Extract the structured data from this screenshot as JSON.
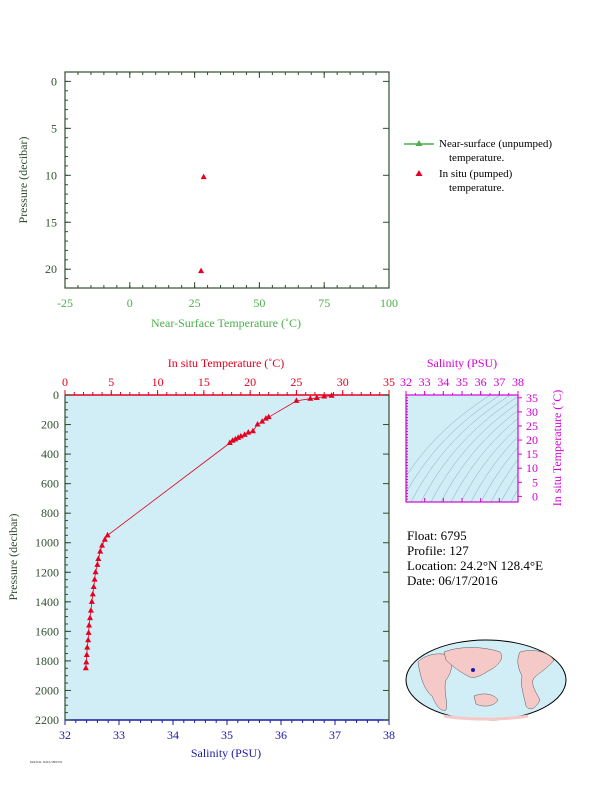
{
  "colors": {
    "green": "#4cae4c",
    "red": "#e6001f",
    "blue": "#1a1aa8",
    "magenta": "#d400d4",
    "darkgreen": "#2f4f2f",
    "panel_bg": "#d1eef7",
    "land": "#f6c9c9",
    "ocean_map": "#d1eef7"
  },
  "legend": {
    "items": [
      {
        "label": "Near-surface (unpumped)",
        "label2": "temperature.",
        "marker": "triangle-line",
        "color": "#4cae4c"
      },
      {
        "label": "In situ (pumped)",
        "label2": "temperature.",
        "marker": "triangle",
        "color": "#e6001f"
      }
    ]
  },
  "info": {
    "float": "Float:  6795",
    "profile": "Profile:  127",
    "location": "Location:  24.2°N  128.4°E",
    "date": "Date:  06/17/2016"
  },
  "footer": "PARTIAL DATA SHOWN",
  "chart_data": [
    {
      "type": "scatter",
      "id": "near_surface",
      "xlabel": "Near-Surface Temperature (˚C)",
      "ylabel": "Pressure (decibar)",
      "xlim": [
        -25,
        100
      ],
      "ylim": [
        22,
        -1
      ],
      "xticks": [
        -25,
        0,
        25,
        50,
        75,
        100
      ],
      "yticks": [
        0,
        5,
        10,
        15,
        20
      ],
      "series": [
        {
          "values": [
            {
              "x": 28.5,
              "y": 10.2
            },
            {
              "x": 27.5,
              "y": 20.2
            }
          ],
          "color": "#e6001f"
        }
      ]
    },
    {
      "type": "line",
      "id": "profile",
      "top_xlabel": "In situ Temperature (˚C)",
      "bottom_xlabel": "Salinity (PSU)",
      "ylabel": "Pressure (decibar)",
      "temp_xlim": [
        0,
        35
      ],
      "temp_xticks": [
        0,
        5,
        10,
        15,
        20,
        25,
        30,
        35
      ],
      "sal_xlim": [
        32,
        38
      ],
      "sal_xticks": [
        32,
        33,
        34,
        35,
        36,
        37,
        38
      ],
      "ylim": [
        2200,
        0
      ],
      "yticks": [
        0,
        200,
        400,
        600,
        800,
        1000,
        1200,
        1400,
        1600,
        1800,
        2000,
        2200
      ],
      "series": [
        {
          "values": [
            {
              "x": 28.8,
              "y": 5
            },
            {
              "x": 28.0,
              "y": 10
            },
            {
              "x": 27.2,
              "y": 20
            },
            {
              "x": 26.5,
              "y": 25
            },
            {
              "x": 25.0,
              "y": 40
            },
            {
              "x": 22.0,
              "y": 150
            },
            {
              "x": 21.7,
              "y": 160
            },
            {
              "x": 21.3,
              "y": 180
            },
            {
              "x": 20.8,
              "y": 200
            },
            {
              "x": 20.3,
              "y": 245
            },
            {
              "x": 19.8,
              "y": 255
            },
            {
              "x": 19.4,
              "y": 270
            },
            {
              "x": 19.0,
              "y": 280
            },
            {
              "x": 18.7,
              "y": 290
            },
            {
              "x": 18.4,
              "y": 300
            },
            {
              "x": 18.1,
              "y": 310
            },
            {
              "x": 17.8,
              "y": 325
            },
            {
              "x": 4.6,
              "y": 950
            },
            {
              "x": 4.3,
              "y": 980
            },
            {
              "x": 4.0,
              "y": 1020
            },
            {
              "x": 3.8,
              "y": 1060
            },
            {
              "x": 3.6,
              "y": 1110
            },
            {
              "x": 3.5,
              "y": 1150
            },
            {
              "x": 3.3,
              "y": 1200
            },
            {
              "x": 3.2,
              "y": 1250
            },
            {
              "x": 3.1,
              "y": 1300
            },
            {
              "x": 3.0,
              "y": 1350
            },
            {
              "x": 2.9,
              "y": 1400
            },
            {
              "x": 2.8,
              "y": 1460
            },
            {
              "x": 2.7,
              "y": 1510
            },
            {
              "x": 2.6,
              "y": 1560
            },
            {
              "x": 2.55,
              "y": 1610
            },
            {
              "x": 2.5,
              "y": 1660
            },
            {
              "x": 2.4,
              "y": 1710
            },
            {
              "x": 2.35,
              "y": 1760
            },
            {
              "x": 2.3,
              "y": 1810
            },
            {
              "x": 2.25,
              "y": 1850
            }
          ],
          "color": "#e6001f"
        }
      ]
    },
    {
      "type": "line",
      "id": "ts_diagram",
      "top_xlabel": "Salinity (PSU)",
      "right_ylabel": "In situ Temperature (˚C)",
      "xlim": [
        32,
        38
      ],
      "xticks": [
        32,
        33,
        34,
        35,
        36,
        37,
        38
      ],
      "ylim": [
        -2,
        36
      ],
      "yticks": [
        0,
        5,
        10,
        15,
        20,
        25,
        30,
        35
      ]
    }
  ]
}
